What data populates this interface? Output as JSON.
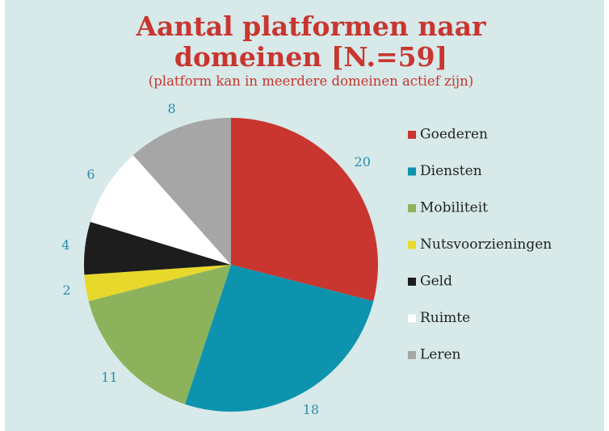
{
  "chart_data": {
    "type": "pie",
    "title": "Aantal platformen naar domeinen [N.=59]",
    "subtitle": "(platform kan in meerdere domeinen actief zijn)",
    "categories": [
      "Goederen",
      "Diensten",
      "Mobiliteit",
      "Nutsvoorzieningen",
      "Geld",
      "Ruimte",
      "Leren"
    ],
    "values": [
      20,
      18,
      11,
      2,
      4,
      6,
      8
    ],
    "colors": [
      "#c9352f",
      "#0d93ae",
      "#8cb35b",
      "#e8d82b",
      "#1d1d1d",
      "#ffffff",
      "#a6a6a6"
    ],
    "legend": "right"
  }
}
